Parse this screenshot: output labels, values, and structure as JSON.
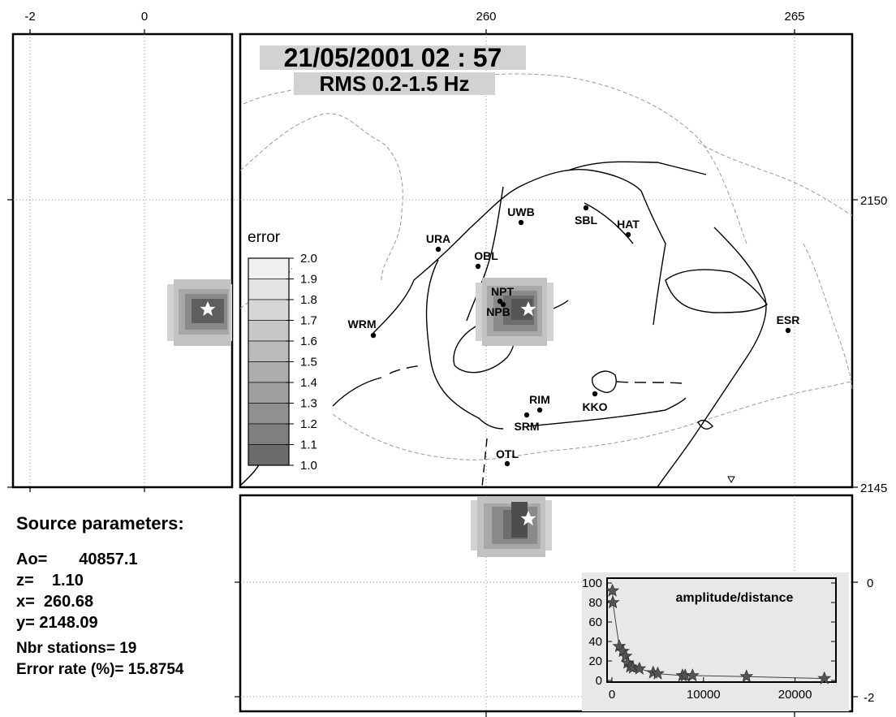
{
  "header": {
    "datetime": "21/05/2001  02 : 57",
    "filter": "RMS 0.2-1.5 Hz"
  },
  "axes": {
    "top_ticks": [
      "-2",
      "0",
      "260",
      "265"
    ],
    "right_ticks": [
      "2150",
      "2145"
    ],
    "inset_right_ticks": [
      "0",
      "-2"
    ]
  },
  "colorbar": {
    "title": "error",
    "levels": [
      "2.0",
      "1.9",
      "1.8",
      "1.7",
      "1.6",
      "1.5",
      "1.4",
      "1.3",
      "1.2",
      "1.1",
      "1.0"
    ],
    "colors": [
      "#efefef",
      "#e3e3e3",
      "#d6d6d6",
      "#c8c8c8",
      "#bbbbbb",
      "#adadad",
      "#9f9f9f",
      "#909090",
      "#808080",
      "#6b6b6b",
      "#4a4a4a"
    ]
  },
  "stations": [
    {
      "name": "UWB",
      "x": 260.6,
      "y": 2149.7
    },
    {
      "name": "SBL",
      "x": 261.6,
      "y": 2149.9
    },
    {
      "name": "HAT",
      "x": 262.3,
      "y": 2149.4
    },
    {
      "name": "URA",
      "x": 258.8,
      "y": 2149.2
    },
    {
      "name": "OBL",
      "x": 259.9,
      "y": 2148.9
    },
    {
      "name": "NPT",
      "x": 260.2,
      "y": 2148.3
    },
    {
      "name": "NPB",
      "x": 260.25,
      "y": 2148.15
    },
    {
      "name": "WRM",
      "x": 258.1,
      "y": 2147.6
    },
    {
      "name": "ESR",
      "x": 264.9,
      "y": 2147.7
    },
    {
      "name": "RIM",
      "x": 260.7,
      "y": 2146.3
    },
    {
      "name": "KKO",
      "x": 261.8,
      "y": 2146.5
    },
    {
      "name": "SRM",
      "x": 260.3,
      "y": 2146.1
    },
    {
      "name": "OTL",
      "x": 260.35,
      "y": 2145.4
    }
  ],
  "source": {
    "x": 260.68,
    "y": 2148.09,
    "z": 1.1
  },
  "params": {
    "heading": "Source parameters:",
    "ao": "Ao=       40857.1",
    "z": "z=    1.10",
    "x": "x=  260.68",
    "y": "y= 2148.09",
    "nbr": "Nbr stations= 19",
    "err": "Error rate (%)= 15.8754"
  },
  "chart_data": {
    "type": "scatter",
    "title": "amplitude/distance",
    "xlabel": "",
    "ylabel": "",
    "xlim": [
      0,
      25000
    ],
    "ylim": [
      0,
      100
    ],
    "x_ticks": [
      "0",
      "10000",
      "20000"
    ],
    "y_ticks": [
      "0",
      "20",
      "40",
      "60",
      "80",
      "100"
    ],
    "series": [
      {
        "values": [
          [
            50,
            92
          ],
          [
            100,
            80
          ],
          [
            800,
            35
          ],
          [
            1200,
            30
          ],
          [
            1500,
            25
          ],
          [
            1700,
            18
          ],
          [
            2000,
            14
          ],
          [
            2300,
            13
          ],
          [
            3000,
            12
          ],
          [
            4500,
            8
          ],
          [
            5000,
            7
          ],
          [
            7700,
            5
          ],
          [
            8000,
            5
          ],
          [
            8800,
            5
          ],
          [
            14700,
            4
          ],
          [
            23200,
            2
          ]
        ]
      }
    ]
  }
}
